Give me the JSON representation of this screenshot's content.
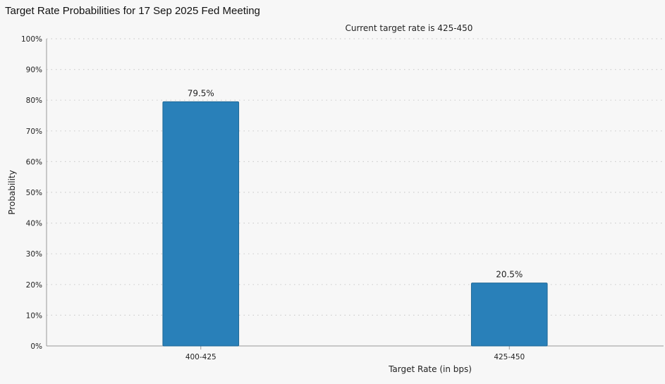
{
  "page": {
    "title": "Target Rate Probabilities for 17 Sep 2025 Fed Meeting"
  },
  "chart_data": {
    "type": "bar",
    "title": "Target Rate Probabilities for 17 Sep 2025 Fed Meeting",
    "subtitle": "Current target rate is 425-450",
    "xlabel": "Target Rate (in bps)",
    "ylabel": "Probability",
    "categories": [
      "400-425",
      "425-450"
    ],
    "values": [
      79.5,
      20.5
    ],
    "data_labels": [
      "79.5%",
      "20.5%"
    ],
    "ylim": [
      0,
      100
    ],
    "y_ticks": [
      "0%",
      "10%",
      "20%",
      "30%",
      "40%",
      "50%",
      "60%",
      "70%",
      "80%",
      "90%",
      "100%"
    ],
    "grid": true,
    "bar_color": "#2980b9",
    "bar_edge_color": "#1f6896",
    "grid_color": "#cfcfcf",
    "axis_color": "#999999"
  }
}
